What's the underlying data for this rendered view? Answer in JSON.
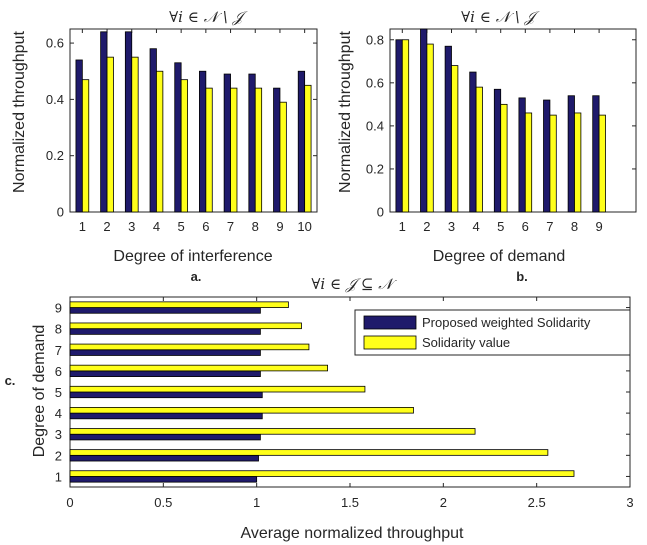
{
  "colors": {
    "series1": "#1f1a6b",
    "series2": "#ffff1a",
    "axis": "#262626"
  },
  "chart_data": [
    {
      "id": "a",
      "type": "bar",
      "orientation": "vertical",
      "panel_label": "a.",
      "title": "∀i ∈ 𝒩 \\ 𝒥",
      "xlabel": "Degree of interference",
      "ylabel": "Normalized throughput",
      "ylim": [
        0,
        0.65
      ],
      "yticks": [
        0,
        0.2,
        0.4,
        0.6
      ],
      "ytick_labels": [
        "0",
        "0.2",
        "0.4",
        "0.6"
      ],
      "categories": [
        "1",
        "2",
        "3",
        "4",
        "5",
        "6",
        "7",
        "8",
        "9",
        "10"
      ],
      "series": [
        {
          "values": [
            0.54,
            0.64,
            0.64,
            0.58,
            0.53,
            0.5,
            0.49,
            0.49,
            0.44,
            0.5
          ]
        },
        {
          "values": [
            0.47,
            0.55,
            0.55,
            0.5,
            0.47,
            0.44,
            0.44,
            0.44,
            0.39,
            0.45
          ]
        }
      ]
    },
    {
      "id": "b",
      "type": "bar",
      "orientation": "vertical",
      "panel_label": "b.",
      "title": "∀i ∈ 𝒩 \\ 𝒥",
      "xlabel": "Degree of demand",
      "ylabel": "Normalized throughput",
      "ylim": [
        0,
        0.85
      ],
      "xlim": [
        0.5,
        10.5
      ],
      "yticks": [
        0,
        0.2,
        0.4,
        0.6,
        0.8
      ],
      "ytick_labels": [
        "0",
        "0.2",
        "0.4",
        "0.6",
        "0.8"
      ],
      "categories": [
        "1",
        "2",
        "3",
        "4",
        "5",
        "6",
        "7",
        "8",
        "9"
      ],
      "series": [
        {
          "values": [
            0.8,
            0.85,
            0.77,
            0.65,
            0.57,
            0.53,
            0.52,
            0.54,
            0.54
          ]
        },
        {
          "values": [
            0.8,
            0.78,
            0.68,
            0.58,
            0.5,
            0.46,
            0.45,
            0.46,
            0.45
          ]
        }
      ]
    },
    {
      "id": "c",
      "type": "bar",
      "orientation": "horizontal",
      "panel_label": "c.",
      "title": "∀i ∈ 𝒥 ⊆ 𝒩",
      "xlabel": "Average normalized throughput",
      "ylabel": "Degree of demand",
      "xlim": [
        0,
        3
      ],
      "xticks": [
        0,
        0.5,
        1,
        1.5,
        2,
        2.5,
        3
      ],
      "xtick_labels": [
        "0",
        "0.5",
        "1",
        "1.5",
        "2",
        "2.5",
        "3"
      ],
      "categories": [
        "1",
        "2",
        "3",
        "4",
        "5",
        "6",
        "7",
        "8",
        "9"
      ],
      "series": [
        {
          "name": "Proposed weighted Solidarity",
          "values": [
            1.0,
            1.01,
            1.02,
            1.03,
            1.03,
            1.02,
            1.02,
            1.02,
            1.02
          ]
        },
        {
          "name": "Solidarity value",
          "values": [
            2.7,
            2.56,
            2.17,
            1.84,
            1.58,
            1.38,
            1.28,
            1.24,
            1.17
          ]
        }
      ],
      "legend_position": "top-right"
    }
  ]
}
